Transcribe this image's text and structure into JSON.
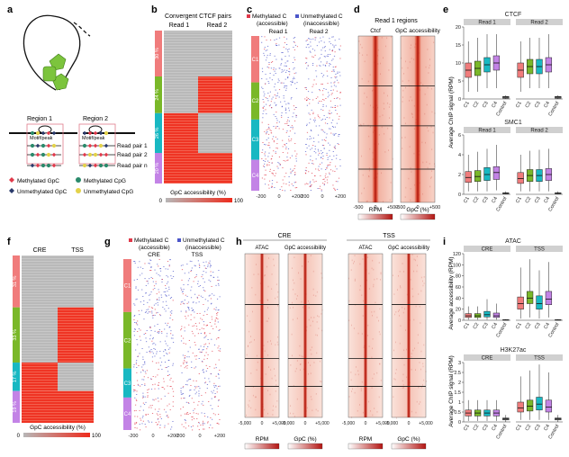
{
  "colors": {
    "c1": "#f07c7c",
    "c2": "#7ab829",
    "c3": "#18b8c2",
    "c4": "#c383e6",
    "red": "#ee2b1c",
    "gray": "#b7b7b7",
    "meth": "#e0394a",
    "unmeth": "#4b55c9",
    "green": "#5fb84d",
    "navy": "#2a3a6b",
    "yellow": "#e3d24a"
  },
  "a": {
    "letter": "a",
    "region1": "Region 1",
    "region2": "Region 2",
    "motif": "Motif/peak",
    "read_pairs": [
      "Read pair 1",
      "Read pair 2",
      "Read pair n"
    ],
    "legend": [
      "Methylated GpC",
      "Methylated CpG",
      "Unmethylated GpC",
      "Unmethylated CpG"
    ]
  },
  "b": {
    "letter": "b",
    "title": "Convergent CTCF pairs",
    "cols": [
      "Read 1",
      "Read 2"
    ],
    "pcts": [
      "30 %",
      "24 %",
      "26 %",
      "20 %"
    ],
    "colorbar": "GpC accessibility (%)",
    "cb_ticks": [
      "0",
      "100"
    ],
    "clusters": [
      [
        0,
        0
      ],
      [
        0,
        1
      ],
      [
        1,
        0
      ],
      [
        1,
        1
      ]
    ],
    "fracs": [
      0.3,
      0.24,
      0.26,
      0.2
    ]
  },
  "c": {
    "letter": "c",
    "leg_meth": "Methylated C",
    "leg_meth2": "(accessible)",
    "leg_unmeth": "Unmethylated C",
    "leg_unmeth2": "(inaccessible)",
    "cols": [
      "Read 1",
      "Read 2"
    ],
    "clusters": [
      "C1",
      "C2",
      "C3",
      "C4"
    ],
    "ticks": [
      "-200",
      "0",
      "+200",
      "-200",
      "0",
      "+200"
    ]
  },
  "d": {
    "letter": "d",
    "title": "Read 1 regions",
    "cols": [
      "Ctcf",
      "GpC accessibility"
    ],
    "ticks": [
      "-500",
      "0",
      "+500",
      "-500",
      "0",
      "+500"
    ],
    "cb": [
      "RPM",
      "GpC (%)"
    ]
  },
  "e": {
    "letter": "e",
    "top_title": "CTCF",
    "bottom_title": "SMC1",
    "facets": [
      "Read 1",
      "Read 2"
    ],
    "ylabel": "Average ChIP signal (RPM)",
    "xcats": [
      "C1",
      "C2",
      "C3",
      "C4",
      "Control"
    ]
  },
  "f": {
    "letter": "f",
    "cols": [
      "CRE",
      "TSS"
    ],
    "pcts": [
      "31 %",
      "33 %",
      "17 %",
      "19 %"
    ],
    "colorbar": "GpC accessibility (%)",
    "cb_ticks": [
      "0",
      "100"
    ],
    "clusters": [
      [
        0,
        0
      ],
      [
        0,
        1
      ],
      [
        1,
        0
      ],
      [
        1,
        1
      ]
    ],
    "fracs": [
      0.31,
      0.33,
      0.17,
      0.19
    ]
  },
  "g": {
    "letter": "g",
    "leg_meth": "Methylated C",
    "leg_meth2": "(accessible)",
    "leg_unmeth": "Unmethylated C",
    "leg_unmeth2": "(inaccessible)",
    "cols": [
      "CRE",
      "TSS"
    ],
    "clusters": [
      "C1",
      "C2",
      "C3",
      "C4"
    ],
    "ticks": [
      "-200",
      "0",
      "+200",
      "-200",
      "0",
      "+200"
    ]
  },
  "h": {
    "letter": "h",
    "groups": [
      "CRE",
      "TSS"
    ],
    "cols": [
      "ATAC",
      "GpC accessibility"
    ],
    "ticks": [
      "-5,000",
      "0",
      "+5,000",
      "-5,000",
      "0",
      "+5,000"
    ],
    "cb": [
      "RPM",
      "GpC (%)"
    ]
  },
  "i": {
    "letter": "i",
    "top_title": "ATAC",
    "bottom_title": "H3K27ac",
    "facets": [
      "CRE",
      "TSS"
    ],
    "ylabel_top": "Average accessibility (RPM)",
    "ylabel_bottom": "Average ChIP signal (RPM)",
    "xcats": [
      "C1",
      "C2",
      "C3",
      "C4",
      "Control"
    ]
  },
  "chart_data": [
    {
      "type": "box",
      "title": "CTCF",
      "ylabel": "Average ChIP signal (RPM)",
      "ylim": [
        0,
        20
      ],
      "yticks": [
        0,
        5,
        10,
        15,
        20
      ],
      "facets": [
        "Read 1",
        "Read 2"
      ],
      "categories": [
        "C1",
        "C2",
        "C3",
        "C4",
        "Control"
      ],
      "series": [
        {
          "name": "Read 1",
          "medians": [
            8,
            8.5,
            9.5,
            10,
            0.5
          ],
          "q1": [
            6,
            6.5,
            7.5,
            8,
            0.2
          ],
          "q3": [
            10,
            10.5,
            11.5,
            12,
            0.7
          ],
          "whisk_lo": [
            2,
            2,
            3,
            3,
            0
          ],
          "whisk_hi": [
            16,
            17,
            18,
            18,
            1
          ]
        },
        {
          "name": "Read 2",
          "medians": [
            8,
            9,
            9,
            9.5,
            0.5
          ],
          "q1": [
            6,
            7,
            7,
            7.5,
            0.2
          ],
          "q3": [
            10,
            11,
            11,
            11.5,
            0.7
          ],
          "whisk_lo": [
            2,
            3,
            3,
            3,
            0
          ],
          "whisk_hi": [
            16,
            17,
            17,
            18,
            1
          ]
        }
      ]
    },
    {
      "type": "box",
      "title": "SMC1",
      "ylabel": "Average ChIP signal (RPM)",
      "ylim": [
        0,
        6
      ],
      "yticks": [
        0,
        2,
        4,
        6
      ],
      "facets": [
        "Read 1",
        "Read 2"
      ],
      "categories": [
        "C1",
        "C2",
        "C3",
        "C4",
        "Control"
      ],
      "series": [
        {
          "name": "Read 1",
          "medians": [
            1.7,
            1.8,
            2,
            2.2,
            0.1
          ],
          "q1": [
            1.2,
            1.3,
            1.4,
            1.5,
            0.05
          ],
          "q3": [
            2.3,
            2.4,
            2.7,
            2.8,
            0.15
          ],
          "whisk_lo": [
            0.3,
            0.3,
            0.3,
            0.4,
            0
          ],
          "whisk_hi": [
            4,
            4.3,
            4.6,
            5,
            0.3
          ]
        },
        {
          "name": "Read 2",
          "medians": [
            1.6,
            1.9,
            1.9,
            2,
            0.1
          ],
          "q1": [
            1.1,
            1.3,
            1.3,
            1.4,
            0.05
          ],
          "q3": [
            2.2,
            2.5,
            2.5,
            2.6,
            0.15
          ],
          "whisk_lo": [
            0.3,
            0.3,
            0.3,
            0.3,
            0
          ],
          "whisk_hi": [
            4,
            4.4,
            4.5,
            4.6,
            0.3
          ]
        }
      ]
    },
    {
      "type": "box",
      "title": "ATAC",
      "ylabel": "Average accessibility (RPM)",
      "ylim": [
        0,
        120
      ],
      "yticks": [
        0,
        20,
        40,
        60,
        80,
        100,
        120
      ],
      "facets": [
        "CRE",
        "TSS"
      ],
      "categories": [
        "C1",
        "C2",
        "C3",
        "C4",
        "Control"
      ],
      "series": [
        {
          "name": "CRE",
          "medians": [
            8,
            8,
            10,
            8,
            0.5
          ],
          "q1": [
            5,
            5,
            6,
            5,
            0.2
          ],
          "q3": [
            12,
            12,
            16,
            13,
            1
          ],
          "whisk_lo": [
            1,
            1,
            1,
            1,
            0
          ],
          "whisk_hi": [
            25,
            25,
            38,
            30,
            2
          ]
        },
        {
          "name": "TSS",
          "medians": [
            30,
            40,
            30,
            38,
            0.5
          ],
          "q1": [
            20,
            30,
            20,
            28,
            0.2
          ],
          "q3": [
            42,
            52,
            44,
            52,
            1
          ],
          "whisk_lo": [
            3,
            5,
            3,
            5,
            0
          ],
          "whisk_hi": [
            95,
            110,
            90,
            105,
            2
          ]
        }
      ]
    },
    {
      "type": "box",
      "title": "H3K27ac",
      "ylabel": "Average ChIP signal (RPM)",
      "ylim": [
        0,
        3
      ],
      "yticks": [
        0,
        0.5,
        1,
        1.5,
        2,
        2.5,
        3
      ],
      "facets": [
        "CRE",
        "TSS"
      ],
      "categories": [
        "C1",
        "C2",
        "C3",
        "C4",
        "Control"
      ],
      "series": [
        {
          "name": "CRE",
          "medians": [
            0.45,
            0.45,
            0.45,
            0.45,
            0.15
          ],
          "q1": [
            0.3,
            0.3,
            0.3,
            0.3,
            0.1
          ],
          "q3": [
            0.6,
            0.6,
            0.6,
            0.6,
            0.2
          ],
          "whisk_lo": [
            0.05,
            0.05,
            0.05,
            0.05,
            0
          ],
          "whisk_hi": [
            1.1,
            1.1,
            1.1,
            1.1,
            0.35
          ]
        },
        {
          "name": "TSS",
          "medians": [
            0.7,
            0.8,
            0.9,
            0.75,
            0.15
          ],
          "q1": [
            0.5,
            0.55,
            0.6,
            0.5,
            0.1
          ],
          "q3": [
            1,
            1.1,
            1.25,
            1.1,
            0.2
          ],
          "whisk_lo": [
            0.1,
            0.1,
            0.1,
            0.1,
            0
          ],
          "whisk_hi": [
            2.3,
            2.6,
            2.9,
            2.5,
            0.35
          ]
        }
      ]
    }
  ]
}
